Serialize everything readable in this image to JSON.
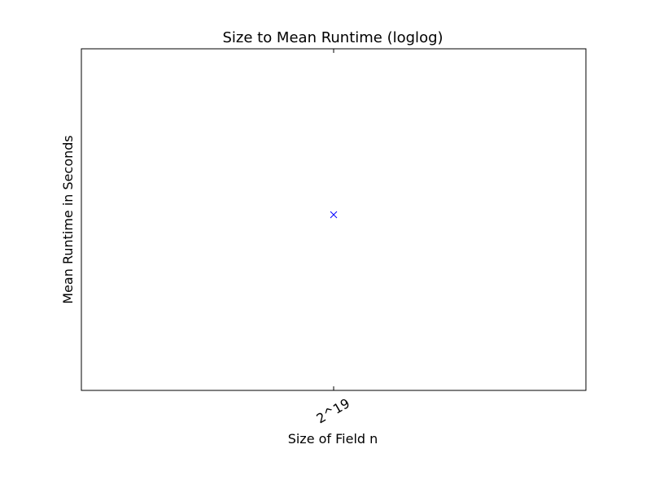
{
  "chart_data": {
    "type": "scatter",
    "title": "Size to Mean Runtime (loglog)",
    "xlabel": "Size of Field n",
    "ylabel": "Mean Runtime in Seconds",
    "x_scale": "log",
    "y_scale": "log",
    "x_ticks": [
      "2^19"
    ],
    "series": [
      {
        "marker": "x",
        "color": "#0000ff",
        "points": [
          {
            "x": "2^19",
            "y": null
          }
        ]
      }
    ],
    "grid": false,
    "legend": "none"
  }
}
